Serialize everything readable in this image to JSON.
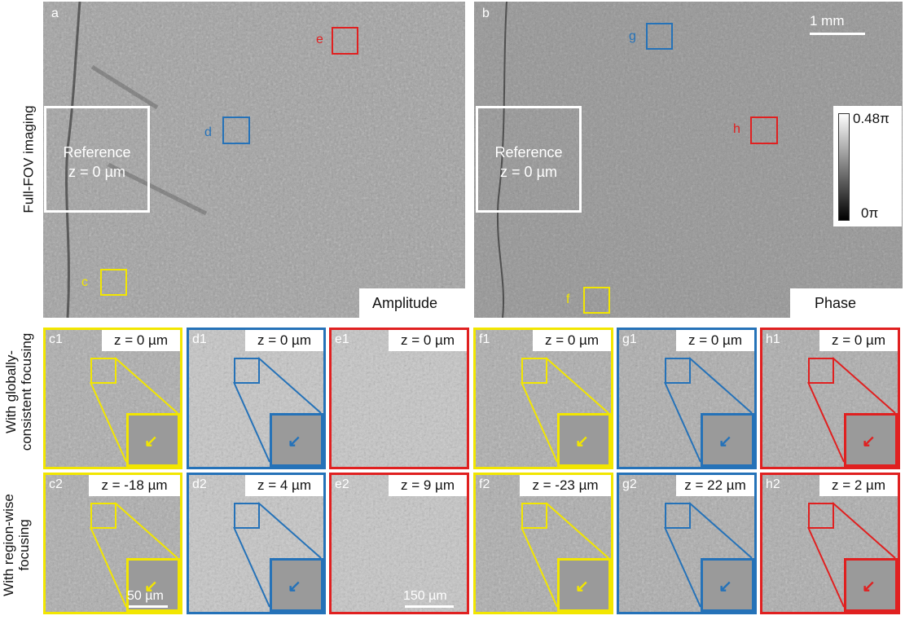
{
  "colors": {
    "yellow": "#f2e600",
    "blue": "#2572b8",
    "red": "#e02020",
    "white": "#ffffff"
  },
  "panels": {
    "a": {
      "label": "a",
      "mode": "Amplitude"
    },
    "b": {
      "label": "b",
      "mode": "Phase"
    }
  },
  "reference": {
    "line1": "Reference",
    "line2": "z = 0 µm"
  },
  "scalebar_main": "1 mm",
  "colorbar": {
    "max": "0.48π",
    "min": "0π"
  },
  "roi_labels": {
    "c": "c",
    "d": "d",
    "e": "e",
    "f": "f",
    "g": "g",
    "h": "h"
  },
  "row_labels": {
    "full": "Full-FOV imaging",
    "global_1": "With globally-",
    "global_2": "consistent focusing",
    "region_1": "With region-wise",
    "region_2": "focusing"
  },
  "tiles_row1": [
    {
      "id": "c1",
      "z": "z = 0 µm",
      "color": "yellow"
    },
    {
      "id": "d1",
      "z": "z = 0 µm",
      "color": "blue"
    },
    {
      "id": "e1",
      "z": "z = 0 µm",
      "color": "red"
    },
    {
      "id": "f1",
      "z": "z = 0 µm",
      "color": "yellow"
    },
    {
      "id": "g1",
      "z": "z = 0 µm",
      "color": "blue"
    },
    {
      "id": "h1",
      "z": "z = 0 µm",
      "color": "red"
    }
  ],
  "tiles_row2": [
    {
      "id": "c2",
      "z": "z = -18 µm",
      "color": "yellow"
    },
    {
      "id": "d2",
      "z": "z = 4 µm",
      "color": "blue"
    },
    {
      "id": "e2",
      "z": "z = 9 µm",
      "color": "red"
    },
    {
      "id": "f2",
      "z": "z = -23 µm",
      "color": "yellow"
    },
    {
      "id": "g2",
      "z": "z = 22 µm",
      "color": "blue"
    },
    {
      "id": "h2",
      "z": "z = 2 µm",
      "color": "red"
    }
  ],
  "scalebars_small": {
    "c2": "50 µm",
    "e2": "150 µm"
  }
}
